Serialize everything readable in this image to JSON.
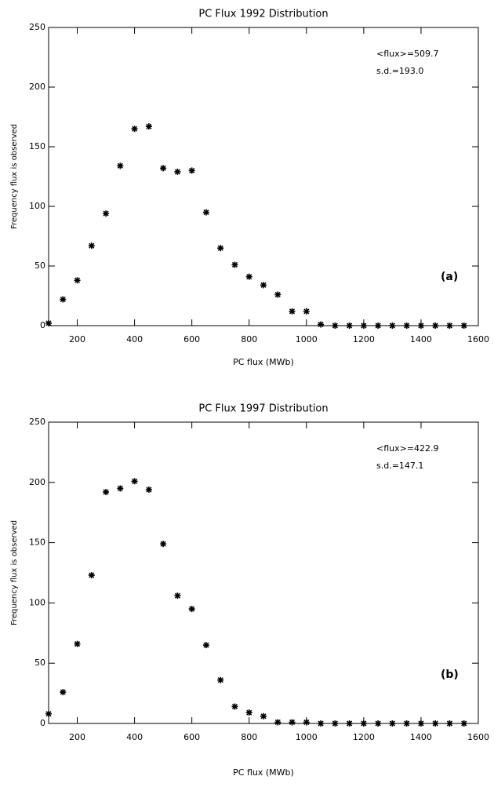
{
  "chart_data": [
    {
      "type": "scatter",
      "title": "PC Flux 1992 Distribution",
      "x_label": "PC flux  (MWb)",
      "y_label": "Frequency flux is observed",
      "annotations": [
        "<flux>=509.7",
        "s.d.=193.0",
        "(a)"
      ],
      "x": [
        100,
        150,
        200,
        250,
        300,
        350,
        400,
        450,
        500,
        550,
        600,
        650,
        700,
        750,
        800,
        850,
        900,
        950,
        1000,
        1050,
        1100,
        1150,
        1200,
        1250,
        1300,
        1350,
        1400,
        1450,
        1500,
        1550
      ],
      "values": [
        2,
        22,
        38,
        67,
        94,
        134,
        165,
        167,
        132,
        129,
        130,
        95,
        65,
        51,
        41,
        34,
        26,
        12,
        12,
        1,
        0,
        0,
        0,
        0,
        0,
        0,
        0,
        0,
        0,
        0
      ],
      "color": "#000000",
      "xlim": [
        100,
        1600
      ],
      "ylim": [
        0,
        250
      ],
      "xticks": [
        200,
        400,
        600,
        800,
        1000,
        1200,
        1400,
        1600
      ],
      "yticks": [
        0,
        50,
        100,
        150,
        200,
        250
      ]
    },
    {
      "type": "scatter",
      "title": "PC Flux 1997 Distribution",
      "x_label": "PC flux  (MWb)",
      "y_label": "Frequency flux is observed",
      "annotations": [
        "<flux>=422.9",
        "s.d.=147.1",
        "(b)"
      ],
      "x": [
        100,
        150,
        200,
        250,
        300,
        350,
        400,
        450,
        500,
        550,
        600,
        650,
        700,
        750,
        800,
        850,
        900,
        950,
        1000,
        1050,
        1100,
        1150,
        1200,
        1250,
        1300,
        1350,
        1400,
        1450,
        1500,
        1550
      ],
      "values": [
        8,
        26,
        66,
        123,
        192,
        195,
        201,
        194,
        149,
        106,
        95,
        65,
        36,
        14,
        9,
        6,
        1,
        1,
        1,
        0,
        0,
        0,
        0,
        0,
        0,
        0,
        0,
        0,
        0,
        0
      ],
      "color": "#000000",
      "xlim": [
        100,
        1600
      ],
      "ylim": [
        0,
        250
      ],
      "xticks": [
        200,
        400,
        600,
        800,
        1000,
        1200,
        1400,
        1600
      ],
      "yticks": [
        0,
        50,
        100,
        150,
        200,
        250
      ]
    }
  ]
}
